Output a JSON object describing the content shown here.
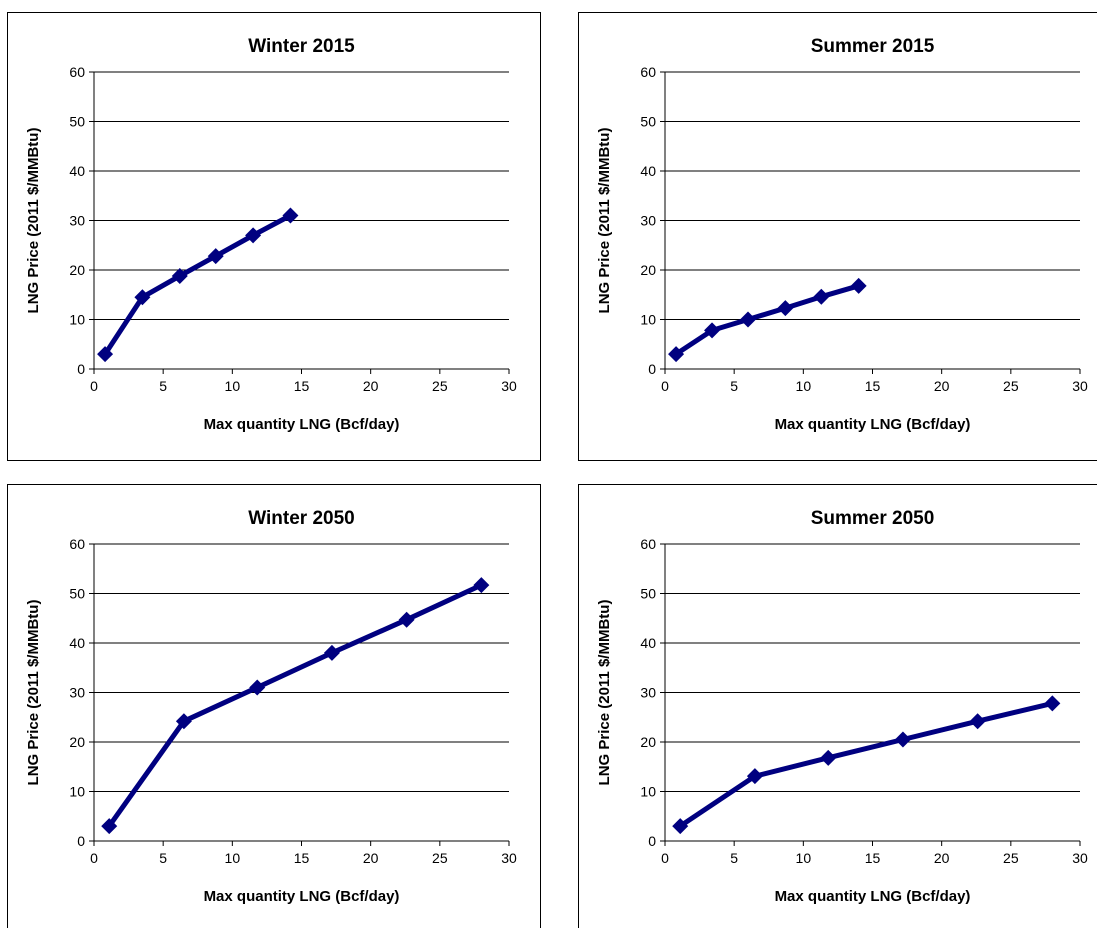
{
  "chart_data": [
    {
      "type": "line",
      "title": "Winter 2015",
      "xlabel": "Max quantity LNG (Bcf/day)",
      "ylabel": "LNG Price (2011 $/MMBtu)",
      "xlim": [
        0,
        30
      ],
      "ylim": [
        0,
        60
      ],
      "xticks": [
        "0",
        "5",
        "10",
        "15",
        "20",
        "25",
        "30"
      ],
      "yticks": [
        "0",
        "10",
        "20",
        "30",
        "40",
        "50",
        "60"
      ],
      "grid": "horizontal",
      "legend": "none",
      "series": [
        {
          "color": "#000080",
          "marker": "diamond",
          "x": [
            0.8,
            3.5,
            6.2,
            8.8,
            11.5,
            14.2
          ],
          "y": [
            3,
            14.5,
            18.8,
            22.8,
            27,
            31
          ]
        }
      ]
    },
    {
      "type": "line",
      "title": "Summer 2015",
      "xlabel": "Max quantity LNG (Bcf/day)",
      "ylabel": "LNG Price (2011 $/MMBtu)",
      "xlim": [
        0,
        30
      ],
      "ylim": [
        0,
        60
      ],
      "xticks": [
        "0",
        "5",
        "10",
        "15",
        "20",
        "25",
        "30"
      ],
      "yticks": [
        "0",
        "10",
        "20",
        "30",
        "40",
        "50",
        "60"
      ],
      "grid": "horizontal",
      "legend": "none",
      "series": [
        {
          "color": "#000080",
          "marker": "diamond",
          "x": [
            0.8,
            3.4,
            6.0,
            8.7,
            11.3,
            14.0
          ],
          "y": [
            3,
            7.8,
            10,
            12.3,
            14.6,
            16.8
          ]
        }
      ]
    },
    {
      "type": "line",
      "title": "Winter 2050",
      "xlabel": "Max quantity LNG (Bcf/day)",
      "ylabel": "LNG Price (2011 $/MMBtu)",
      "xlim": [
        0,
        30
      ],
      "ylim": [
        0,
        60
      ],
      "xticks": [
        "0",
        "5",
        "10",
        "15",
        "20",
        "25",
        "30"
      ],
      "yticks": [
        "0",
        "10",
        "20",
        "30",
        "40",
        "50",
        "60"
      ],
      "grid": "horizontal",
      "legend": "none",
      "series": [
        {
          "color": "#000080",
          "marker": "diamond",
          "x": [
            1.1,
            6.5,
            11.8,
            17.2,
            22.6,
            28.0
          ],
          "y": [
            3,
            24.2,
            31,
            38,
            44.7,
            51.7
          ]
        }
      ]
    },
    {
      "type": "line",
      "title": "Summer 2050",
      "xlabel": "Max quantity LNG (Bcf/day)",
      "ylabel": "LNG Price (2011 $/MMBtu)",
      "xlim": [
        0,
        30
      ],
      "ylim": [
        0,
        60
      ],
      "xticks": [
        "0",
        "5",
        "10",
        "15",
        "20",
        "25",
        "30"
      ],
      "yticks": [
        "0",
        "10",
        "20",
        "30",
        "40",
        "50",
        "60"
      ],
      "grid": "horizontal",
      "legend": "none",
      "series": [
        {
          "color": "#000080",
          "marker": "diamond",
          "x": [
            1.1,
            6.5,
            11.8,
            17.2,
            22.6,
            28.0
          ],
          "y": [
            3,
            13.1,
            16.8,
            20.5,
            24.2,
            27.8
          ]
        }
      ]
    }
  ]
}
